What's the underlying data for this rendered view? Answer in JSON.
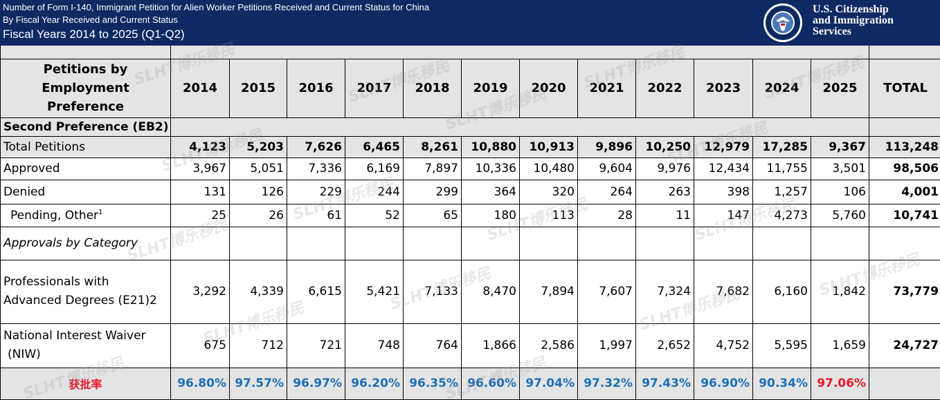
{
  "banner": {
    "line1": "Number of Form I-140, Immigrant Petition for Alien Worker Petitions Received and Current Status for China",
    "line2": "By Fiscal Year Received and Current Status",
    "line3": "Fiscal Years 2014 to 2025 (Q1-Q2)",
    "agency_line1": "U.S. Citizenship",
    "agency_line2": "and Immigration",
    "agency_line3": "Services",
    "seal_icon": "dhs-seal-icon",
    "colors": {
      "banner_bg": "#0f2a63",
      "rate_blue": "#1d6fb8",
      "rate_red": "#e8192c",
      "header_gray": "#e4e4e4"
    }
  },
  "table": {
    "row_header_line1": "Petitions by",
    "row_header_line2": "Employment Preference",
    "years": [
      "2014",
      "2015",
      "2016",
      "2017",
      "2018",
      "2019",
      "2020",
      "2021",
      "2022",
      "2023",
      "2024",
      "2025"
    ],
    "total_label": "TOTAL",
    "section_label": "Second Preference (EB2)",
    "rows": {
      "total_petitions": {
        "label": "Total Petitions",
        "values": [
          "4,123",
          "5,203",
          "7,626",
          "6,465",
          "8,261",
          "10,880",
          "10,913",
          "9,896",
          "10,250",
          "12,979",
          "17,285",
          "9,367"
        ],
        "total": "113,248"
      },
      "approved": {
        "label": "Approved",
        "values": [
          "3,967",
          "5,051",
          "7,336",
          "6,169",
          "7,897",
          "10,336",
          "10,480",
          "9,604",
          "9,976",
          "12,434",
          "11,755",
          "3,501"
        ],
        "total": "98,506"
      },
      "denied": {
        "label": "Denied",
        "values": [
          "131",
          "126",
          "229",
          "244",
          "299",
          "364",
          "320",
          "264",
          "263",
          "398",
          "1,257",
          "106"
        ],
        "total": "4,001"
      },
      "pending": {
        "label": "Pending, Other",
        "footnote": "1",
        "values": [
          "25",
          "26",
          "61",
          "52",
          "65",
          "180",
          "113",
          "28",
          "11",
          "147",
          "4,273",
          "5,760"
        ],
        "total": "10,741"
      },
      "approvals_by_category": {
        "label": "Approvals by Category"
      },
      "professionals": {
        "label_line1": "Professionals with",
        "label_line2": "Advanced Degrees (E21)2",
        "values": [
          "3,292",
          "4,339",
          "6,615",
          "5,421",
          "7,133",
          "8,470",
          "7,894",
          "7,607",
          "7,324",
          "7,682",
          "6,160",
          "1,842"
        ],
        "total": "73,779"
      },
      "niw": {
        "label_line1": "National Interest Waiver",
        "label_line2": "(NIW)",
        "values": [
          "675",
          "712",
          "721",
          "748",
          "764",
          "1,866",
          "2,586",
          "1,997",
          "2,652",
          "4,752",
          "5,595",
          "1,659"
        ],
        "total": "24,727"
      },
      "approval_rate": {
        "label": "获批率",
        "values": [
          "96.80%",
          "97.57%",
          "96.97%",
          "96.20%",
          "96.35%",
          "96.60%",
          "97.04%",
          "97.32%",
          "97.43%",
          "96.90%",
          "90.34%",
          "97.06%"
        ],
        "total": ""
      }
    }
  },
  "watermark": {
    "text": "SLHT博乐移民"
  }
}
